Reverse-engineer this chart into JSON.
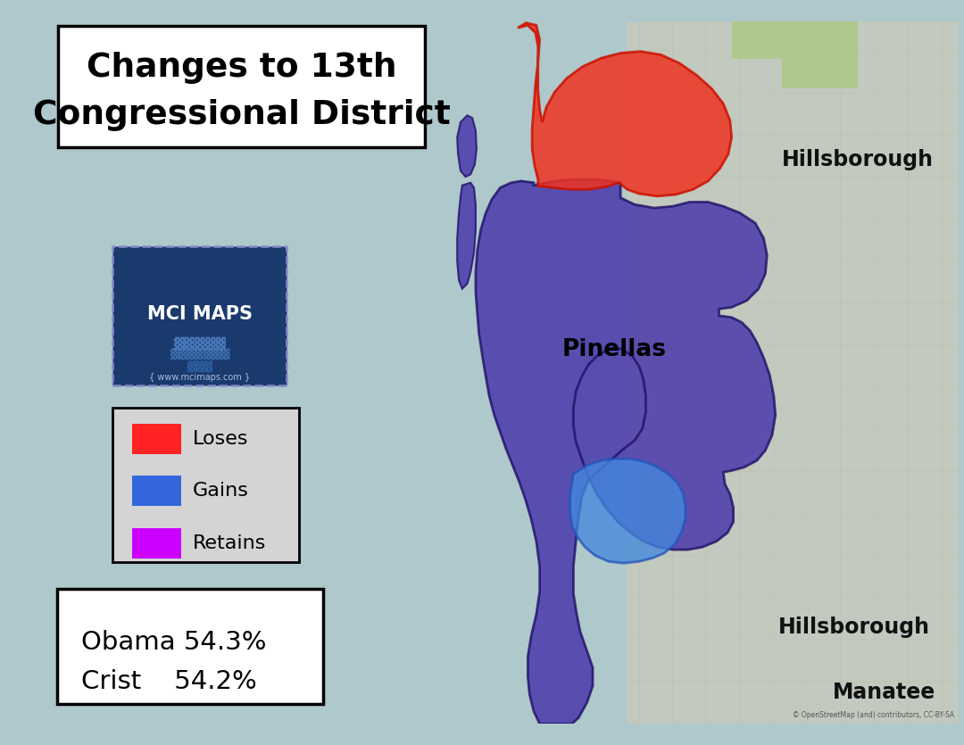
{
  "title_line1": "Changes to 13th",
  "title_line2": "Congressional District",
  "background_color": "#aec8cc",
  "title_box_color": "#ffffff",
  "legend_items": [
    {
      "label": "Loses",
      "color": "#ff2222"
    },
    {
      "label": "Gains",
      "color": "#3366dd"
    },
    {
      "label": "Retains",
      "color": "#cc00ff"
    }
  ],
  "legend_box_color": "#d4d4d4",
  "stats_line1": "Obama 54.3%",
  "stats_line2": "Crist    54.2%",
  "stats_box_color": "#ffffff",
  "mci_box_color": "#1a3a6e",
  "mci_text": "MCI MAPS",
  "mci_subtext": "{ www.mcimaps.com }",
  "label_pinellas": "Pinellas",
  "label_hillsborough_top": "Hillsborough",
  "label_hillsborough_bot": "Hillsborough",
  "label_manatee": "Manatee",
  "retains_color": "#4433aa",
  "retains_edge": "#221166",
  "loses_color": "#ee3322",
  "loses_edge": "#cc1100",
  "gains_color": "#4488dd",
  "gains_edge": "#2255bb",
  "map_road_color": "#d4c090",
  "map_bg_right": "#d8cdb0"
}
